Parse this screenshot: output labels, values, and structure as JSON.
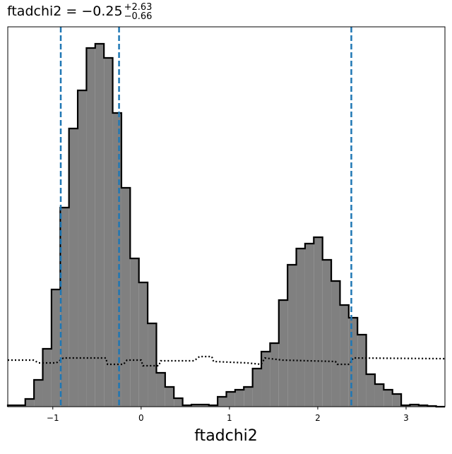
{
  "chart_data": {
    "type": "histogram",
    "title": {
      "text": "ftadchi2 = −0.25",
      "upper": "+2.63",
      "lower": "−0.66"
    },
    "xlabel": "ftadchi2",
    "bins": [
      -1.51,
      -1.411,
      -1.312,
      -1.213,
      -1.114,
      -1.015,
      -0.916,
      -0.817,
      -0.718,
      -0.619,
      -0.52,
      -0.421,
      -0.322,
      -0.223,
      -0.124,
      -0.025,
      0.074,
      0.173,
      0.272,
      0.371,
      0.47,
      0.569,
      0.668,
      0.767,
      0.866,
      0.965,
      1.064,
      1.163,
      1.262,
      1.361,
      1.46,
      1.559,
      1.658,
      1.757,
      1.856,
      1.955,
      2.054,
      2.153,
      2.252,
      2.351,
      2.45,
      2.549,
      2.648,
      2.747,
      2.846,
      2.945,
      3.044,
      3.143,
      3.242,
      3.341,
      3.44
    ],
    "values": [
      2,
      2,
      11,
      38,
      82,
      166,
      282,
      394,
      448,
      508,
      514,
      494,
      416,
      310,
      210,
      176,
      118,
      48,
      28,
      12,
      2,
      3,
      3,
      2,
      14,
      21,
      24,
      28,
      54,
      78,
      90,
      151,
      201,
      224,
      231,
      240,
      208,
      178,
      144,
      126,
      102,
      46,
      32,
      24,
      18,
      2,
      3,
      2,
      1,
      0
    ],
    "color": "#808080",
    "prior": {
      "x": [
        -1.51,
        -1.22,
        -1.16,
        -0.96,
        -0.88,
        -0.4,
        -0.38,
        -0.2,
        -0.16,
        0,
        0.02,
        0.2,
        0.22,
        0.6,
        0.66,
        0.8,
        0.82,
        1.2,
        1.36,
        1.4,
        1.6,
        2.2,
        2.22,
        2.36,
        2.4,
        3.44
      ],
      "values": [
        66,
        66,
        62,
        62,
        69,
        69,
        60,
        60,
        66,
        66,
        58,
        58,
        65,
        65,
        71,
        71,
        64,
        62,
        60,
        69,
        66,
        64,
        60,
        60,
        69,
        68
      ]
    },
    "vlines": [
      -0.91,
      -0.25,
      2.38
    ],
    "vline_color": "#1f77b4",
    "xlim": [
      -1.51,
      3.44
    ],
    "ylim": [
      0,
      538
    ],
    "xticks": [
      {
        "value": -1,
        "label": "−1"
      },
      0,
      1,
      2,
      3
    ]
  }
}
